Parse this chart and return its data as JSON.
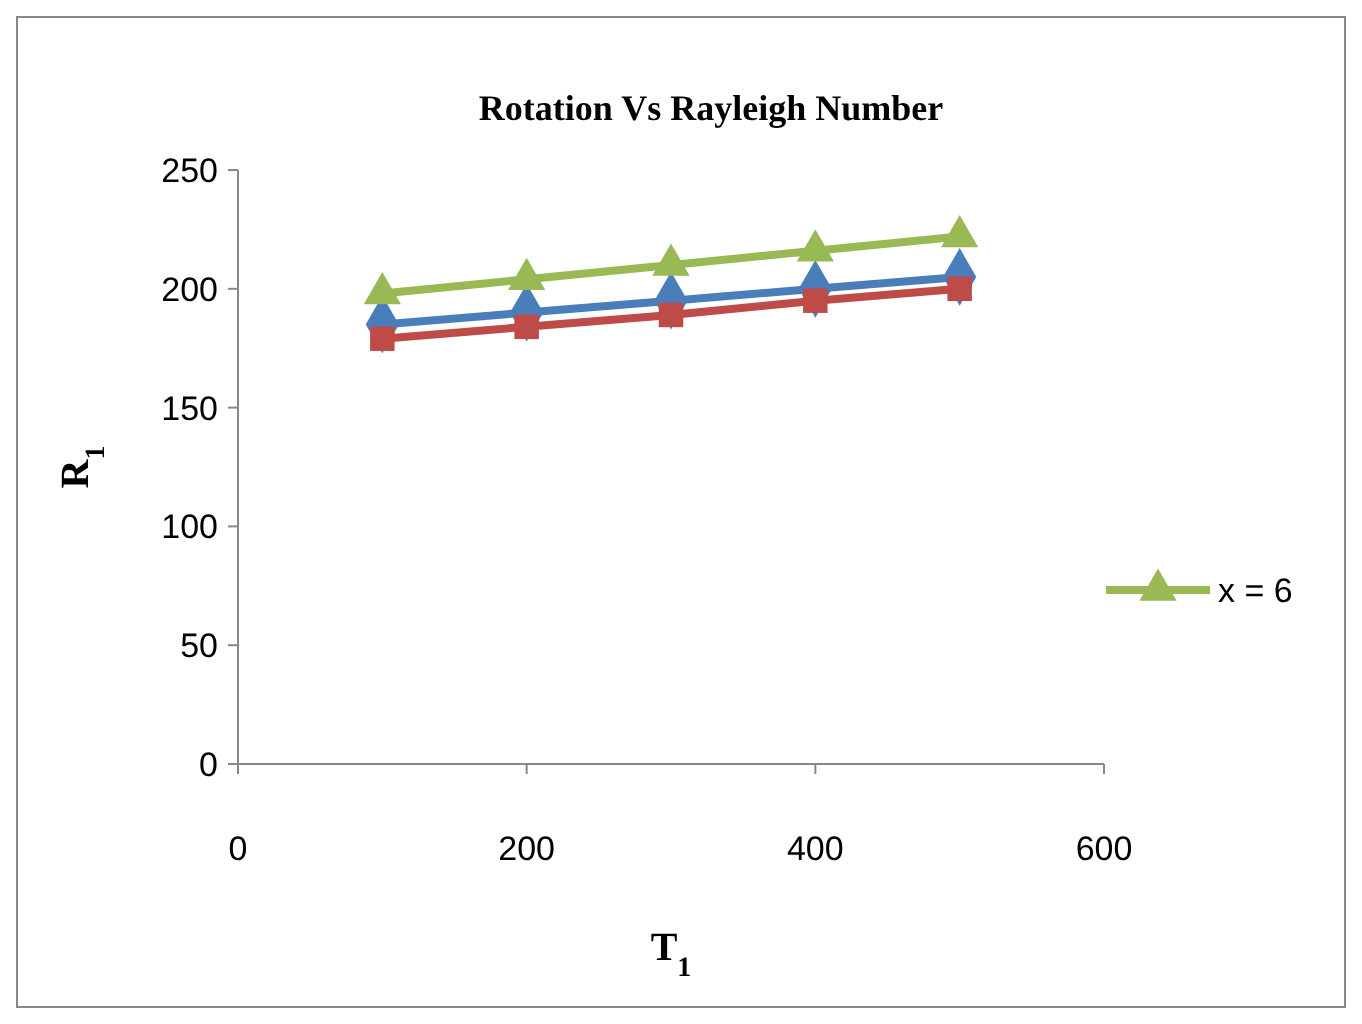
{
  "chart_data": {
    "type": "line",
    "title": "Rotation Vs Rayleigh Number",
    "xlabel": "T$_{1}$",
    "ylabel": "R$_{1}$",
    "x": [
      100,
      200,
      300,
      400,
      500
    ],
    "series": [
      {
        "color": "#4a7ebb",
        "marker": "diamond",
        "values": [
          185,
          190,
          195,
          200,
          205
        ]
      },
      {
        "color": "#be4b48",
        "marker": "square",
        "values": [
          179,
          184,
          189,
          195,
          200
        ]
      },
      {
        "name": "x = 6",
        "color": "#98b954",
        "marker": "triangle",
        "values": [
          198,
          204,
          210,
          216,
          222
        ]
      }
    ],
    "xlim": [
      0,
      600
    ],
    "xticks": [
      0,
      200,
      400,
      600
    ],
    "ylim": [
      0,
      250
    ],
    "yticks": [
      0,
      50,
      100,
      150,
      200,
      250
    ],
    "grid": false,
    "legend": "right",
    "line_style": "solid"
  }
}
